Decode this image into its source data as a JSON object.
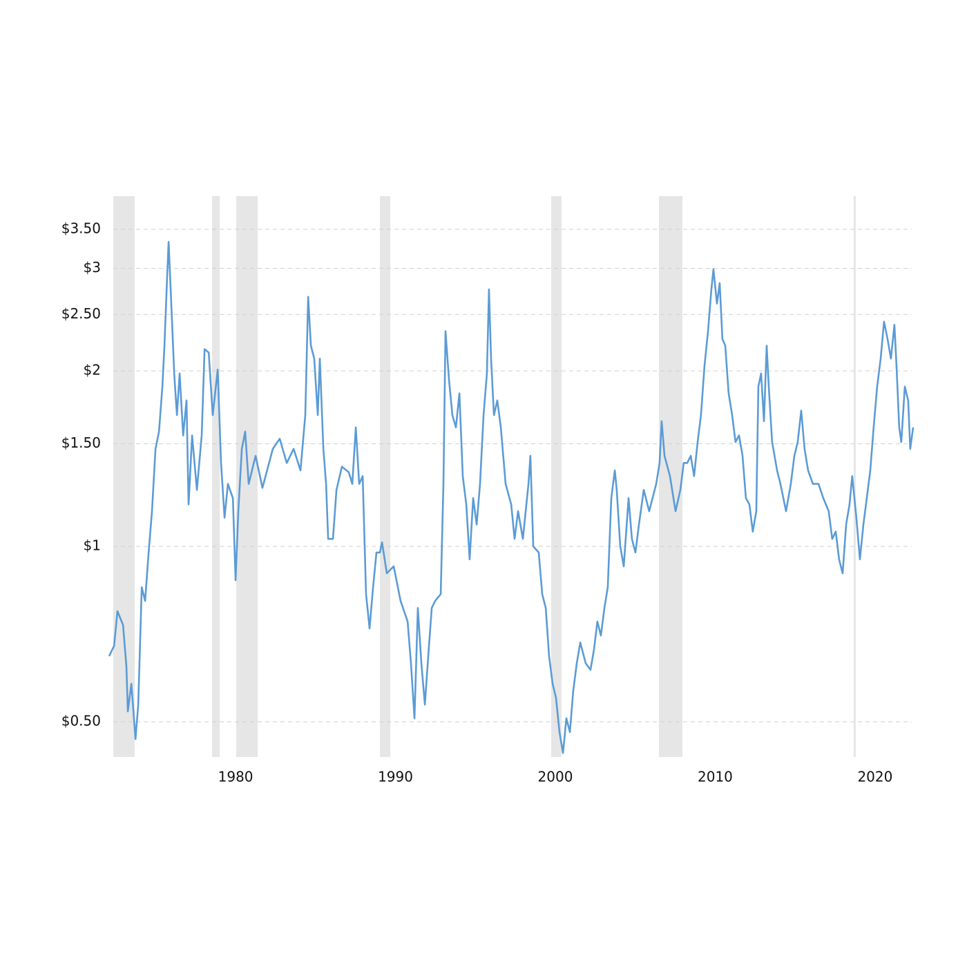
{
  "chart_data": {
    "type": "line",
    "color": "#5b9bd5",
    "log_scale": true,
    "grid": true,
    "band_color": "#e6e6e6",
    "xlim": [
      1972.09,
      2022.38
    ],
    "ylim": [
      0.435,
      3.99
    ],
    "xticks": [
      1980,
      1990,
      2000,
      2010,
      2020
    ],
    "yticks": [
      {
        "value": 0.5,
        "label": "$0.50"
      },
      {
        "value": 1,
        "label": "$1"
      },
      {
        "value": 1.5,
        "label": "$1.50"
      },
      {
        "value": 2,
        "label": "$2"
      },
      {
        "value": 2.5,
        "label": "$2.50"
      },
      {
        "value": 3,
        "label": "$3"
      },
      {
        "value": 3.5,
        "label": "$3.50"
      }
    ],
    "shaded_ranges": [
      [
        1972.35,
        1973.69
      ],
      [
        1978.53,
        1979.01
      ],
      [
        1980.04,
        1981.38
      ],
      [
        1989.03,
        1989.68
      ],
      [
        1999.74,
        2000.39
      ],
      [
        2006.48,
        2007.95
      ],
      [
        2018.66,
        2018.79
      ]
    ],
    "x": [
      1972.09,
      1972.4,
      1972.61,
      1972.96,
      1973.17,
      1973.26,
      1973.48,
      1973.74,
      1973.91,
      1974.13,
      1974.34,
      1974.56,
      1974.77,
      1974.99,
      1975.21,
      1975.42,
      1975.55,
      1975.72,
      1975.81,
      1975.94,
      1976.16,
      1976.33,
      1976.5,
      1976.72,
      1976.93,
      1977.06,
      1977.28,
      1977.58,
      1977.88,
      1978.06,
      1978.32,
      1978.57,
      1978.88,
      1979.09,
      1979.31,
      1979.52,
      1979.83,
      1980.0,
      1980.17,
      1980.39,
      1980.6,
      1980.82,
      1981.25,
      1981.68,
      1982.33,
      1982.76,
      1983.2,
      1983.63,
      1984.06,
      1984.36,
      1984.54,
      1984.71,
      1984.92,
      1985.14,
      1985.27,
      1985.49,
      1985.66,
      1985.79,
      1986.09,
      1986.31,
      1986.65,
      1987.08,
      1987.3,
      1987.52,
      1987.73,
      1987.95,
      1988.16,
      1988.38,
      1988.6,
      1988.81,
      1989.03,
      1989.16,
      1989.46,
      1989.89,
      1990.32,
      1990.76,
      1990.97,
      1991.19,
      1991.4,
      1991.62,
      1991.84,
      1992.05,
      1992.27,
      1992.48,
      1992.83,
      1993.0,
      1993.13,
      1993.35,
      1993.56,
      1993.78,
      1994.0,
      1994.21,
      1994.43,
      1994.64,
      1994.86,
      1995.08,
      1995.29,
      1995.51,
      1995.72,
      1995.85,
      1995.98,
      1996.16,
      1996.37,
      1996.59,
      1996.89,
      1997.24,
      1997.45,
      1997.67,
      1997.97,
      1998.32,
      1998.44,
      1998.62,
      1998.96,
      1999.18,
      1999.4,
      1999.61,
      1999.83,
      2000.04,
      2000.26,
      2000.48,
      2000.69,
      2000.91,
      2001.12,
      2001.34,
      2001.56,
      2001.9,
      2002.2,
      2002.42,
      2002.63,
      2002.85,
      2003.07,
      2003.28,
      2003.5,
      2003.72,
      2003.84,
      2004.06,
      2004.28,
      2004.58,
      2004.79,
      2005.01,
      2005.23,
      2005.53,
      2005.87,
      2006.31,
      2006.52,
      2006.65,
      2006.83,
      2007.17,
      2007.52,
      2007.82,
      2008.03,
      2008.25,
      2008.47,
      2008.68,
      2008.9,
      2009.11,
      2009.33,
      2009.55,
      2009.76,
      2009.89,
      2010.11,
      2010.28,
      2010.45,
      2010.63,
      2010.84,
      2011.06,
      2011.27,
      2011.49,
      2011.71,
      2011.92,
      2012.14,
      2012.35,
      2012.57,
      2012.7,
      2012.87,
      2013.05,
      2013.22,
      2013.35,
      2013.56,
      2013.87,
      2014.08,
      2014.43,
      2014.73,
      2014.95,
      2015.16,
      2015.38,
      2015.59,
      2015.81,
      2016.11,
      2016.46,
      2016.76,
      2017.1,
      2017.32,
      2017.54,
      2017.75,
      2017.97,
      2018.19,
      2018.4,
      2018.57,
      2018.83,
      2019.05,
      2019.27,
      2019.48,
      2019.7,
      2019.91,
      2020.13,
      2020.35,
      2020.56,
      2020.78,
      2020.99,
      2021.21,
      2021.34,
      2021.51,
      2021.64,
      2021.86,
      2022.07,
      2022.2,
      2022.38
    ],
    "values": [
      0.648,
      0.675,
      0.774,
      0.733,
      0.622,
      0.521,
      0.581,
      0.467,
      0.535,
      0.851,
      0.806,
      0.976,
      1.149,
      1.47,
      1.574,
      1.88,
      2.21,
      2.91,
      3.33,
      2.76,
      1.98,
      1.68,
      1.98,
      1.55,
      1.78,
      1.18,
      1.55,
      1.25,
      1.55,
      2.18,
      2.15,
      1.68,
      2.01,
      1.39,
      1.12,
      1.28,
      1.21,
      0.875,
      1.149,
      1.47,
      1.574,
      1.28,
      1.43,
      1.26,
      1.47,
      1.53,
      1.39,
      1.47,
      1.35,
      1.68,
      2.68,
      2.21,
      2.1,
      1.68,
      2.1,
      1.47,
      1.28,
      1.03,
      1.03,
      1.25,
      1.37,
      1.34,
      1.28,
      1.6,
      1.28,
      1.32,
      0.828,
      0.723,
      0.851,
      0.976,
      0.976,
      1.016,
      0.899,
      0.924,
      0.806,
      0.743,
      0.63,
      0.507,
      0.784,
      0.63,
      0.535,
      0.648,
      0.784,
      0.806,
      0.828,
      1.28,
      2.34,
      1.93,
      1.68,
      1.6,
      1.83,
      1.32,
      1.18,
      0.95,
      1.21,
      1.09,
      1.28,
      1.68,
      1.98,
      2.76,
      2.1,
      1.68,
      1.78,
      1.6,
      1.28,
      1.18,
      1.03,
      1.149,
      1.03,
      1.28,
      1.43,
      1.0,
      0.976,
      0.828,
      0.784,
      0.648,
      0.581,
      0.55,
      0.48,
      0.442,
      0.507,
      0.48,
      0.565,
      0.63,
      0.684,
      0.63,
      0.614,
      0.666,
      0.743,
      0.703,
      0.784,
      0.851,
      1.21,
      1.35,
      1.25,
      1.0,
      0.924,
      1.21,
      1.03,
      0.976,
      1.09,
      1.25,
      1.149,
      1.28,
      1.39,
      1.64,
      1.43,
      1.32,
      1.149,
      1.25,
      1.39,
      1.39,
      1.43,
      1.32,
      1.51,
      1.68,
      2.04,
      2.34,
      2.76,
      2.99,
      2.61,
      2.83,
      2.27,
      2.21,
      1.83,
      1.68,
      1.51,
      1.55,
      1.43,
      1.21,
      1.18,
      1.06,
      1.149,
      1.88,
      1.98,
      1.64,
      2.21,
      1.88,
      1.51,
      1.35,
      1.28,
      1.149,
      1.28,
      1.43,
      1.51,
      1.71,
      1.47,
      1.35,
      1.28,
      1.28,
      1.21,
      1.149,
      1.03,
      1.06,
      0.95,
      0.899,
      1.09,
      1.18,
      1.32,
      1.12,
      0.95,
      1.09,
      1.21,
      1.35,
      1.6,
      1.88,
      2.1,
      2.43,
      2.27,
      2.1,
      2.4,
      2.04,
      1.6,
      1.51,
      1.88,
      1.78,
      1.47,
      1.6
    ]
  }
}
